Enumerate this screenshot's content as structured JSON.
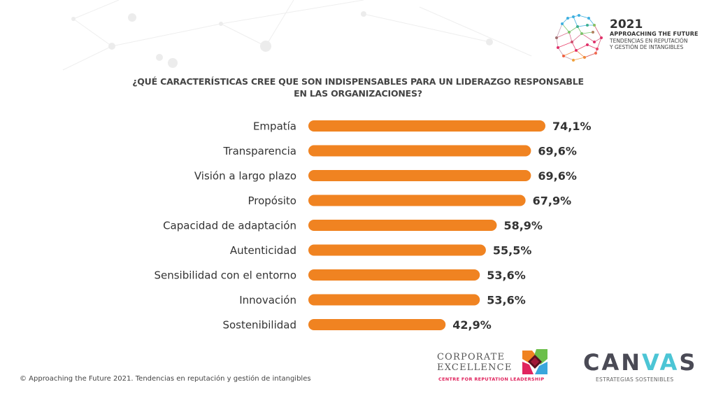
{
  "header": {
    "year": "2021",
    "subtitle": "APPROACHING THE FUTURE",
    "tagline_line1": "TENDENCIAS EN REPUTACIÓN",
    "tagline_line2": "Y GESTIÓN DE INTANGIBLES"
  },
  "chart_data": {
    "type": "bar",
    "orientation": "horizontal",
    "title_line1": "¿QUÉ CARACTERÍSTICAS CREE QUE SON INDISPENSABLES PARA UN LIDERAZGO RESPONSABLE",
    "title_line2": "EN LAS ORGANIZACIONES?",
    "categories": [
      "Empatía",
      "Transparencia",
      "Visión a largo plazo",
      "Propósito",
      "Capacidad de adaptación",
      "Autenticidad",
      "Sensibilidad con el entorno",
      "Innovación",
      "Sostenibilidad"
    ],
    "values": [
      74.1,
      69.6,
      69.6,
      67.9,
      58.9,
      55.5,
      53.6,
      53.6,
      42.9
    ],
    "value_labels": [
      "74,1%",
      "69,6%",
      "69,6%",
      "67,9%",
      "58,9%",
      "55,5%",
      "53,6%",
      "53,6%",
      "42,9%"
    ],
    "unit": "%",
    "xlabel": "",
    "ylabel": "",
    "xlim": [
      0,
      100
    ],
    "grid": false,
    "legend": "none",
    "bar_color": "#f08321"
  },
  "footer": {
    "copyright": "© Approaching the Future 2021. Tendencias en reputación y gestión de intangibles"
  },
  "logos": {
    "corporate_excellence_line1": "CORPORATE",
    "corporate_excellence_line2": "EXCELLENCE",
    "corporate_excellence_tag": "CENTRE FOR REPUTATION LEADERSHIP",
    "canvas_part1": "CAN",
    "canvas_part2": "VA",
    "canvas_part3": "S",
    "canvas_tag": "ESTRATEGIAS SOSTENIBLES"
  },
  "colors": {
    "accent": "#f08321",
    "text": "#333333",
    "ce_pink": "#e0245e",
    "canvas_teal": "#4cc5d5"
  }
}
